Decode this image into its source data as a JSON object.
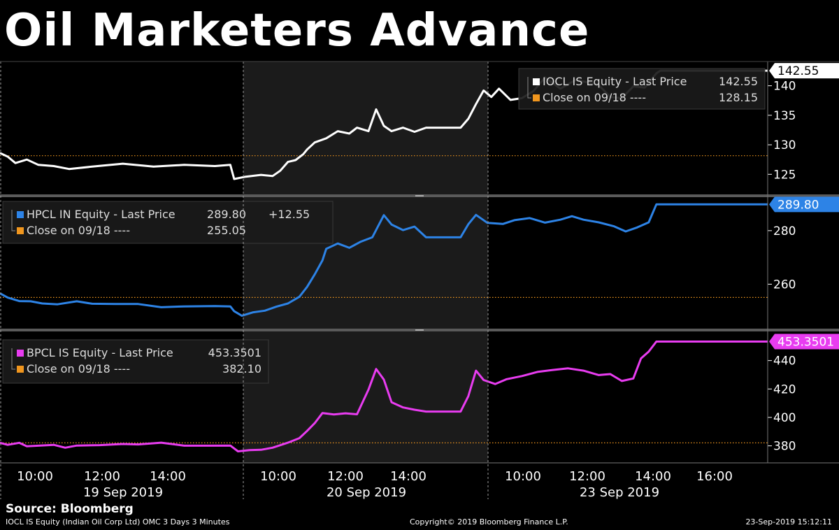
{
  "title": "Oil Marketers Advance",
  "source": "Source: Bloomberg",
  "footer": {
    "left": "IOCL IS Equity (Indian Oil Corp Ltd) OMC 3 Days 3 Minutes",
    "middle": "Copyright© 2019 Bloomberg Finance L.P.",
    "right": "23-Sep-2019 15:12:11"
  },
  "chart_data": {
    "type": "line",
    "x_labels": {
      "times": [
        "10:00",
        "12:00",
        "14:00",
        "10:00",
        "12:00",
        "14:00",
        "10:00",
        "12:00",
        "14:00",
        "16:00"
      ],
      "dates": [
        "19 Sep 2019",
        "20 Sep 2019",
        "23 Sep 2019"
      ]
    },
    "panels": [
      {
        "name": "IOCL IS Equity",
        "legend_line1": "IOCL IS Equity - Last Price",
        "legend_value1": "142.55",
        "legend_line2": "Close on 09/18 ----",
        "legend_value2": "128.15",
        "color": "#ffffff",
        "last_price": 142.55,
        "last_label": "142.55",
        "close_prev": 128.15,
        "ylim": [
          121.6,
          144.1
        ],
        "yticks": [
          125,
          130,
          135,
          140
        ],
        "series": [
          [
            0,
            128.6
          ],
          [
            0.01,
            128
          ],
          [
            0.02,
            126.9
          ],
          [
            0.035,
            127.5
          ],
          [
            0.05,
            126.6
          ],
          [
            0.07,
            126.4
          ],
          [
            0.09,
            125.9
          ],
          [
            0.12,
            126.3
          ],
          [
            0.16,
            126.8
          ],
          [
            0.2,
            126.3
          ],
          [
            0.24,
            126.6
          ],
          [
            0.28,
            126.4
          ],
          [
            0.3,
            126.6
          ],
          [
            0.305,
            124.2
          ],
          [
            0.32,
            124.6
          ],
          [
            0.34,
            124.9
          ],
          [
            0.355,
            124.7
          ],
          [
            0.365,
            125.6
          ],
          [
            0.375,
            127.1
          ],
          [
            0.385,
            127.4
          ],
          [
            0.395,
            128.4
          ],
          [
            0.4,
            129.2
          ],
          [
            0.41,
            130.4
          ],
          [
            0.425,
            131.1
          ],
          [
            0.44,
            132.3
          ],
          [
            0.455,
            131.9
          ],
          [
            0.465,
            132.9
          ],
          [
            0.48,
            132.3
          ],
          [
            0.49,
            136
          ],
          [
            0.5,
            133.2
          ],
          [
            0.51,
            132.3
          ],
          [
            0.525,
            132.9
          ],
          [
            0.54,
            132.2
          ],
          [
            0.555,
            132.9
          ],
          [
            0.6,
            132.9
          ],
          [
            0.61,
            134.4
          ],
          [
            0.62,
            136.9
          ],
          [
            0.63,
            139.2
          ],
          [
            0.64,
            138.1
          ],
          [
            0.65,
            139.5
          ],
          [
            0.665,
            137.6
          ],
          [
            0.68,
            137.9
          ],
          [
            0.695,
            139.1
          ],
          [
            0.71,
            141.4
          ],
          [
            0.73,
            139.5
          ],
          [
            0.75,
            141
          ],
          [
            0.765,
            140.6
          ],
          [
            0.78,
            140.1
          ],
          [
            0.795,
            138.1
          ],
          [
            0.81,
            137.9
          ],
          [
            0.825,
            139.9
          ],
          [
            0.84,
            139.7
          ],
          [
            0.855,
            142.1
          ],
          [
            0.86,
            142.55
          ],
          [
            1,
            142.55
          ]
        ]
      },
      {
        "name": "HPCL IN Equity",
        "legend_line1": "HPCL IN Equity - Last Price",
        "legend_value1": "289.80",
        "legend_change": "+12.55",
        "legend_line2": "Close on 09/18 ----",
        "legend_value2": "255.05",
        "color": "#2d83e6",
        "last_price": 289.8,
        "last_label": "289.80",
        "close_prev": 255.05,
        "ylim": [
          243.4,
          292.5
        ],
        "yticks": [
          260,
          280
        ],
        "series": [
          [
            0,
            256.6
          ],
          [
            0.01,
            255
          ],
          [
            0.025,
            253.7
          ],
          [
            0.04,
            253.6
          ],
          [
            0.055,
            252.8
          ],
          [
            0.075,
            252.5
          ],
          [
            0.1,
            253.6
          ],
          [
            0.12,
            252.7
          ],
          [
            0.15,
            252.6
          ],
          [
            0.18,
            252.6
          ],
          [
            0.21,
            251.4
          ],
          [
            0.24,
            251.7
          ],
          [
            0.28,
            251.8
          ],
          [
            0.3,
            251.7
          ],
          [
            0.305,
            249.9
          ],
          [
            0.315,
            248.2
          ],
          [
            0.33,
            249.5
          ],
          [
            0.345,
            250.1
          ],
          [
            0.36,
            251.6
          ],
          [
            0.375,
            252.8
          ],
          [
            0.39,
            255.3
          ],
          [
            0.4,
            259
          ],
          [
            0.41,
            263.7
          ],
          [
            0.42,
            268.9
          ],
          [
            0.425,
            273.2
          ],
          [
            0.44,
            275.2
          ],
          [
            0.455,
            273.6
          ],
          [
            0.47,
            275.9
          ],
          [
            0.485,
            277.5
          ],
          [
            0.5,
            285.8
          ],
          [
            0.51,
            282.3
          ],
          [
            0.525,
            280.2
          ],
          [
            0.54,
            281.5
          ],
          [
            0.555,
            277.5
          ],
          [
            0.6,
            277.5
          ],
          [
            0.61,
            282.4
          ],
          [
            0.62,
            285.9
          ],
          [
            0.635,
            282.9
          ],
          [
            0.655,
            282.5
          ],
          [
            0.67,
            283.9
          ],
          [
            0.69,
            284.7
          ],
          [
            0.71,
            283
          ],
          [
            0.73,
            284.1
          ],
          [
            0.745,
            285.4
          ],
          [
            0.76,
            284.1
          ],
          [
            0.78,
            283.1
          ],
          [
            0.8,
            281.6
          ],
          [
            0.815,
            279.7
          ],
          [
            0.83,
            281.2
          ],
          [
            0.845,
            283.1
          ],
          [
            0.855,
            289.8
          ],
          [
            1,
            289.8
          ]
        ]
      },
      {
        "name": "BPCL IS Equity",
        "legend_line1": "BPCL IS Equity - Last Price",
        "legend_value1": "453.3501",
        "legend_line2": "Close on 09/18 ----",
        "legend_value2": "382.10",
        "color": "#e83cf0",
        "last_price": 453.3501,
        "last_label": "453.3501",
        "close_prev": 382.1,
        "ylim": [
          368,
          460.5
        ],
        "yticks": [
          380,
          400,
          420,
          440
        ],
        "series": [
          [
            0,
            382.1
          ],
          [
            0.01,
            380.7
          ],
          [
            0.025,
            382.1
          ],
          [
            0.035,
            379.7
          ],
          [
            0.05,
            380.1
          ],
          [
            0.07,
            380.7
          ],
          [
            0.085,
            378.7
          ],
          [
            0.1,
            380.2
          ],
          [
            0.13,
            380.5
          ],
          [
            0.16,
            381.3
          ],
          [
            0.18,
            381
          ],
          [
            0.21,
            382.2
          ],
          [
            0.24,
            380.1
          ],
          [
            0.27,
            380.1
          ],
          [
            0.3,
            380.2
          ],
          [
            0.31,
            376.1
          ],
          [
            0.325,
            377
          ],
          [
            0.34,
            377.2
          ],
          [
            0.355,
            378.7
          ],
          [
            0.375,
            382.2
          ],
          [
            0.39,
            385.4
          ],
          [
            0.4,
            390.5
          ],
          [
            0.41,
            396
          ],
          [
            0.42,
            403.1
          ],
          [
            0.435,
            402.1
          ],
          [
            0.45,
            402.9
          ],
          [
            0.465,
            402.2
          ],
          [
            0.48,
            419.5
          ],
          [
            0.49,
            434.1
          ],
          [
            0.5,
            426.6
          ],
          [
            0.51,
            410.7
          ],
          [
            0.525,
            407
          ],
          [
            0.54,
            405.4
          ],
          [
            0.555,
            404.1
          ],
          [
            0.6,
            404.1
          ],
          [
            0.61,
            414.9
          ],
          [
            0.62,
            432.9
          ],
          [
            0.63,
            426.3
          ],
          [
            0.645,
            423.5
          ],
          [
            0.66,
            426.9
          ],
          [
            0.68,
            429.1
          ],
          [
            0.7,
            432
          ],
          [
            0.72,
            433.4
          ],
          [
            0.74,
            434.5
          ],
          [
            0.76,
            432.9
          ],
          [
            0.78,
            429.8
          ],
          [
            0.795,
            430.5
          ],
          [
            0.81,
            425.6
          ],
          [
            0.825,
            427.4
          ],
          [
            0.835,
            441.5
          ],
          [
            0.845,
            446.3
          ],
          [
            0.855,
            453.35
          ],
          [
            1,
            453.35
          ]
        ]
      }
    ]
  }
}
